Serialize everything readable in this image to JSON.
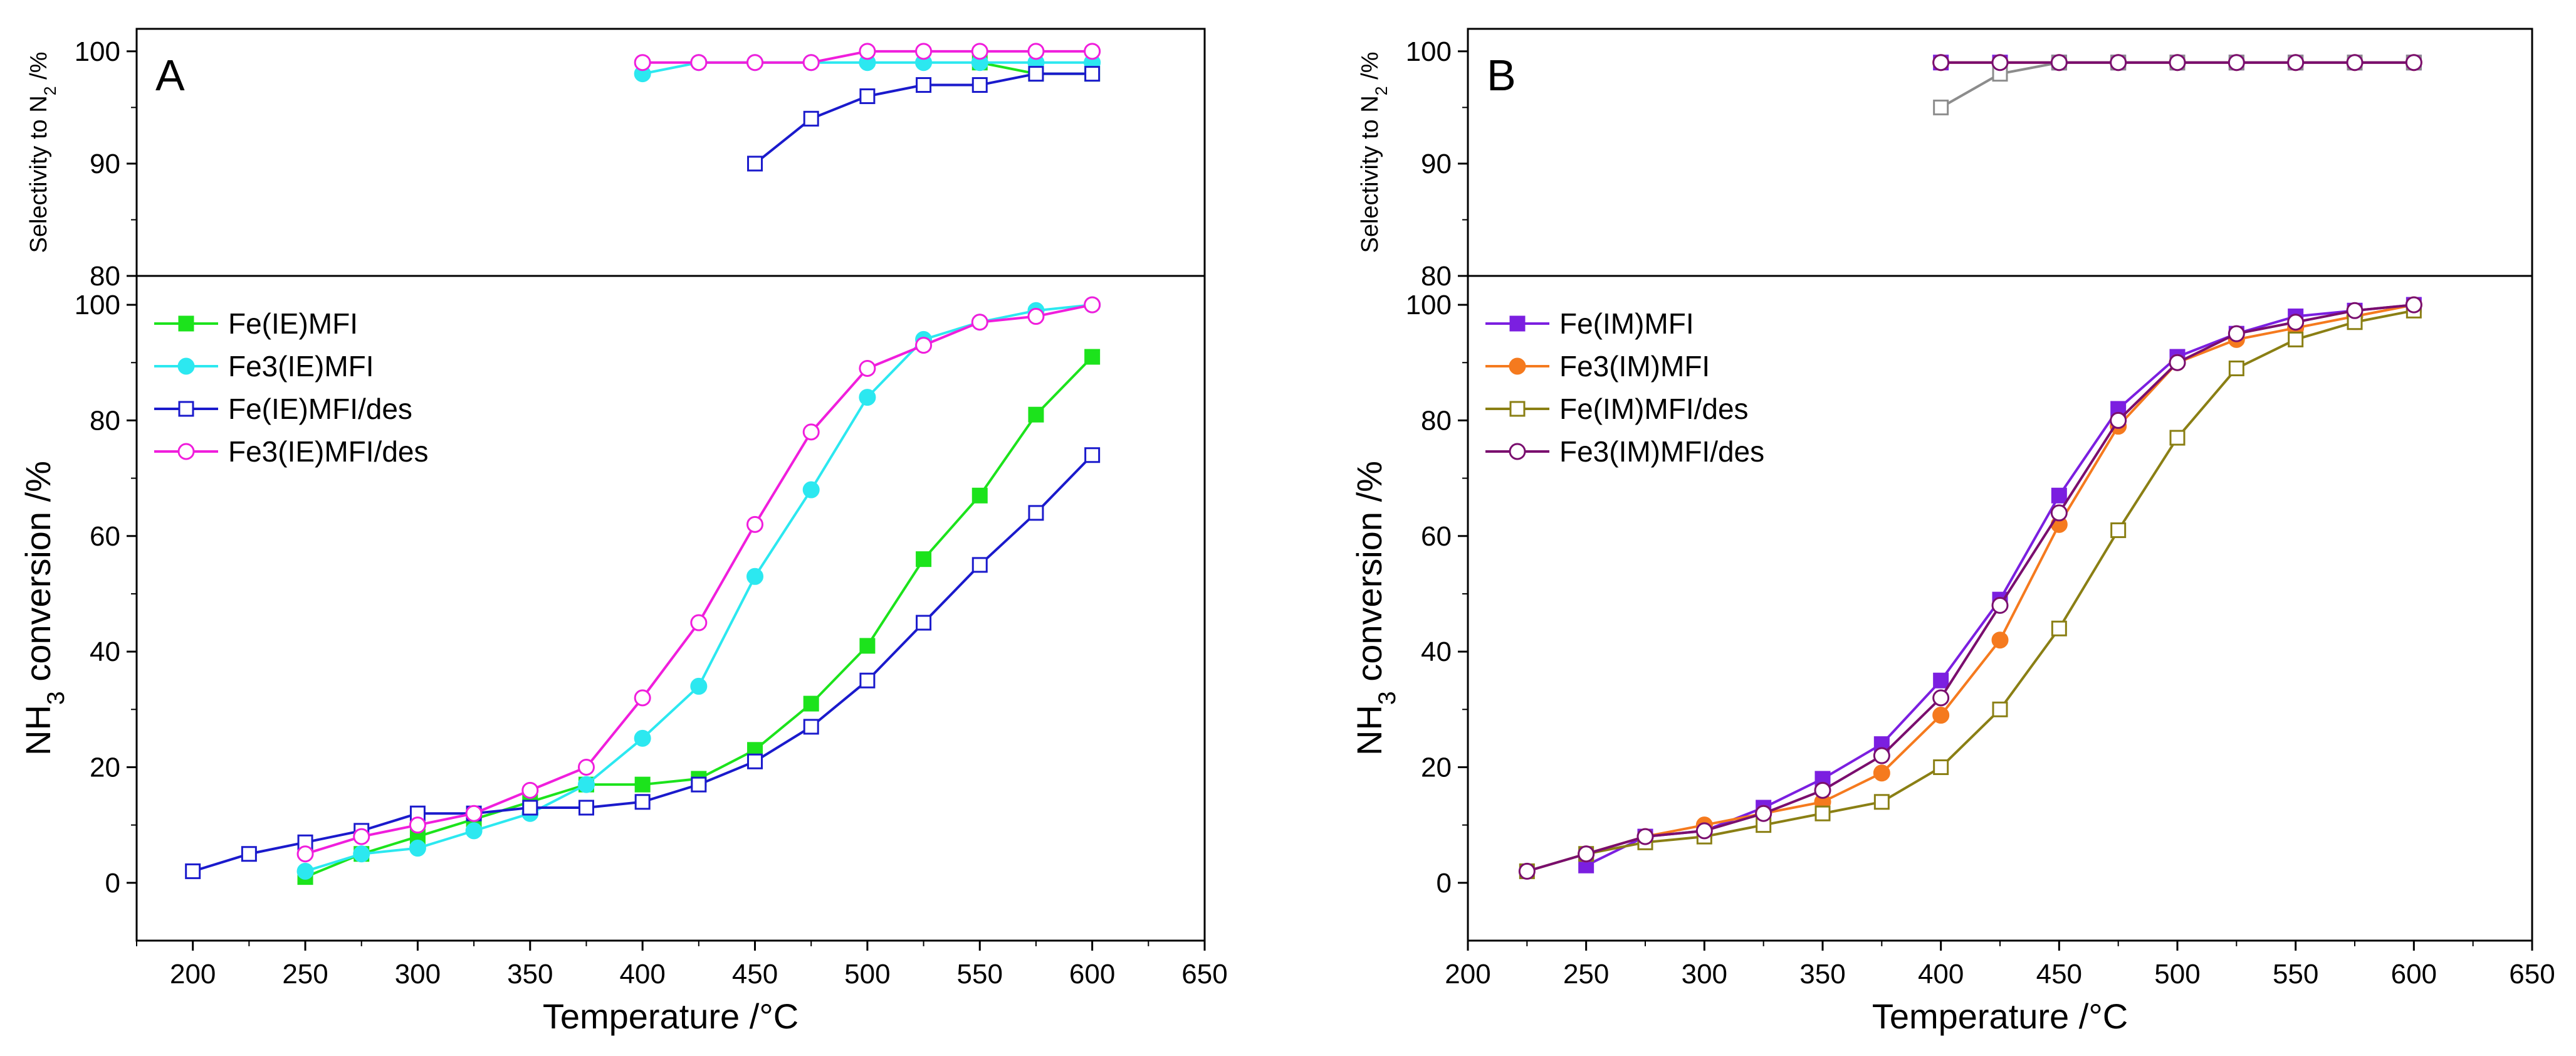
{
  "chart_data": [
    {
      "type": "line",
      "panel_letter": "A",
      "x": [
        200,
        225,
        250,
        275,
        300,
        325,
        350,
        375,
        400,
        425,
        450,
        475,
        500,
        525,
        550,
        575,
        600
      ],
      "xlabel_prefix": "Temperature /",
      "xlabel_unit": "°C",
      "xlim": [
        175,
        650
      ],
      "xticks": [
        "200",
        "250",
        "300",
        "350",
        "400",
        "450",
        "500",
        "550",
        "600",
        "650"
      ],
      "legend_position": "top-left",
      "conversion": {
        "ylabel_prefix": "NH",
        "ylabel_sub": "3",
        "ylabel_suffix": " conversion /%",
        "ylim": [
          -10,
          105
        ],
        "yticks": [
          "0",
          "20",
          "40",
          "60",
          "80",
          "100"
        ],
        "series": [
          {
            "name": "Fe(IE)MFI",
            "color": "#1CE31C",
            "marker": "square-filled",
            "values": [
              null,
              null,
              1,
              5,
              8,
              11,
              14,
              17,
              17,
              18,
              23,
              31,
              41,
              56,
              67,
              81,
              91
            ]
          },
          {
            "name": "Fe3(IE)MFI",
            "color": "#2CE8F0",
            "marker": "circle-filled",
            "values": [
              null,
              null,
              2,
              5,
              6,
              9,
              12,
              17,
              25,
              34,
              53,
              68,
              84,
              94,
              97,
              99,
              100
            ]
          },
          {
            "name": "Fe(IE)MFI/des",
            "color": "#1A1ACC",
            "marker": "square-open",
            "values": [
              2,
              5,
              7,
              9,
              12,
              12,
              13,
              13,
              14,
              17,
              21,
              27,
              35,
              45,
              55,
              64,
              74
            ]
          },
          {
            "name": "Fe3(IE)MFI/des",
            "color": "#F01EDC",
            "marker": "circle-open",
            "values": [
              null,
              null,
              5,
              8,
              10,
              12,
              16,
              20,
              32,
              45,
              62,
              78,
              89,
              93,
              97,
              98,
              100
            ]
          }
        ]
      },
      "selectivity": {
        "ylabel_prefix": "Selectivity to N",
        "ylabel_sub": "2",
        "ylabel_suffix": " /%",
        "ylim": [
          80,
          102
        ],
        "yticks": [
          "80",
          "90",
          "100"
        ],
        "series": [
          {
            "name": "Fe(IE)MFI",
            "color": "#1CE31C",
            "marker": "square-filled",
            "values": [
              null,
              null,
              null,
              null,
              null,
              null,
              null,
              null,
              null,
              null,
              null,
              null,
              null,
              null,
              99,
              98,
              98
            ]
          },
          {
            "name": "Fe3(IE)MFI",
            "color": "#2CE8F0",
            "marker": "circle-filled",
            "values": [
              null,
              null,
              null,
              null,
              null,
              null,
              null,
              null,
              98,
              99,
              99,
              99,
              99,
              99,
              99,
              99,
              99
            ]
          },
          {
            "name": "Fe(IE)MFI/des",
            "color": "#1A1ACC",
            "marker": "square-open",
            "values": [
              null,
              null,
              null,
              null,
              null,
              null,
              null,
              null,
              null,
              null,
              90,
              94,
              96,
              97,
              97,
              98,
              98
            ]
          },
          {
            "name": "Fe3(IE)MFI/des",
            "color": "#F01EDC",
            "marker": "circle-open",
            "values": [
              null,
              null,
              null,
              null,
              null,
              null,
              null,
              null,
              99,
              99,
              99,
              99,
              100,
              100,
              100,
              100,
              100
            ]
          }
        ]
      }
    },
    {
      "type": "line",
      "panel_letter": "B",
      "x": [
        225,
        250,
        275,
        300,
        325,
        350,
        375,
        400,
        425,
        450,
        475,
        500,
        525,
        550,
        575,
        600
      ],
      "xlabel_prefix": "Temperature /",
      "xlabel_unit": "°C",
      "xlim": [
        200,
        650
      ],
      "xticks": [
        "200",
        "250",
        "300",
        "350",
        "400",
        "450",
        "500",
        "550",
        "600",
        "650"
      ],
      "legend_position": "top-left",
      "conversion": {
        "ylabel_prefix": "NH",
        "ylabel_sub": "3",
        "ylabel_suffix": " conversion /%",
        "ylim": [
          -10,
          105
        ],
        "yticks": [
          "0",
          "20",
          "40",
          "60",
          "80",
          "100"
        ],
        "series": [
          {
            "name": "Fe(IM)MFI",
            "color": "#7B1FE0",
            "marker": "square-filled",
            "values": [
              null,
              3,
              8,
              9,
              13,
              18,
              24,
              35,
              49,
              67,
              82,
              91,
              95,
              98,
              99,
              100
            ]
          },
          {
            "name": "Fe3(IM)MFI",
            "color": "#F57A1E",
            "marker": "circle-filled",
            "values": [
              null,
              5,
              8,
              10,
              12,
              14,
              19,
              29,
              42,
              62,
              79,
              90,
              94,
              96,
              98,
              100
            ]
          },
          {
            "name": "Fe(IM)MFI/des",
            "color": "#8A7F14",
            "marker": "square-open",
            "values": [
              2,
              5,
              7,
              8,
              10,
              12,
              14,
              20,
              30,
              44,
              61,
              77,
              89,
              94,
              97,
              99
            ]
          },
          {
            "name": "Fe3(IM)MFI/des",
            "color": "#7A0E6E",
            "marker": "circle-open",
            "values": [
              2,
              5,
              8,
              9,
              12,
              16,
              22,
              32,
              48,
              64,
              80,
              90,
              95,
              97,
              99,
              100
            ]
          }
        ]
      },
      "selectivity": {
        "ylabel_prefix": "Selectivity to N",
        "ylabel_sub": "2",
        "ylabel_suffix": " /%",
        "ylim": [
          80,
          102
        ],
        "yticks": [
          "80",
          "90",
          "100"
        ],
        "series": [
          {
            "name": "Fe(IM)MFI",
            "color": "#7B1FE0",
            "marker": "square-filled",
            "values": [
              null,
              null,
              null,
              null,
              null,
              null,
              null,
              99,
              99,
              99,
              99,
              99,
              99,
              99,
              99,
              99
            ]
          },
          {
            "name": "Fe3(IM)MFI",
            "color": "#F57A1E",
            "marker": "circle-filled",
            "values": [
              null,
              null,
              null,
              null,
              null,
              null,
              null,
              99,
              99,
              99,
              99,
              99,
              99,
              99,
              99,
              99
            ]
          },
          {
            "name": "Fe(IM)MFI/des",
            "color": "#8C8C8C",
            "marker": "square-open",
            "values": [
              null,
              null,
              null,
              null,
              null,
              null,
              null,
              95,
              98,
              99,
              99,
              99,
              99,
              99,
              99,
              99
            ]
          },
          {
            "name": "Fe3(IM)MFI/des",
            "color": "#7A0E6E",
            "marker": "circle-open",
            "values": [
              null,
              null,
              null,
              null,
              null,
              null,
              null,
              99,
              99,
              99,
              99,
              99,
              99,
              99,
              99,
              99
            ]
          }
        ]
      }
    }
  ]
}
